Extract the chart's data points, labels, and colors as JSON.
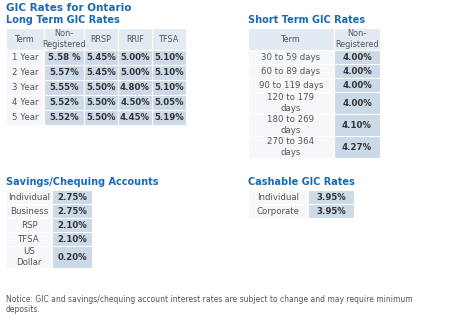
{
  "title": "GIC Rates for Ontario",
  "title_color": "#1a6ab0",
  "bg_color": "#ffffff",
  "section_title_color": "#1a6ab0",
  "cell_bg_highlight": "#ccd9e8",
  "cell_bg_normal": "#f5f7fa",
  "header_bg": "#e2eaf3",
  "text_color": "#555555",
  "bold_color": "#333333",
  "long_term_title": "Long Term GIC Rates",
  "long_term_headers": [
    "Term",
    "Non-\nRegistered",
    "RRSP",
    "RRIF",
    "TFSA"
  ],
  "long_term_rows": [
    [
      "1 Year",
      "5.58 %",
      "5.45%",
      "5.00%",
      "5.10%"
    ],
    [
      "2 Year",
      "5.57%",
      "5.45%",
      "5.00%",
      "5.10%"
    ],
    [
      "3 Year",
      "5.55%",
      "5.50%",
      "4.80%",
      "5.10%"
    ],
    [
      "4 Year",
      "5.52%",
      "5.50%",
      "4.50%",
      "5.05%"
    ],
    [
      "5 Year",
      "5.52%",
      "5.50%",
      "4.45%",
      "5.19%"
    ]
  ],
  "short_term_title": "Short Term GIC Rates",
  "short_term_headers": [
    "Term",
    "Non-\nRegistered"
  ],
  "short_term_rows": [
    [
      "30 to 59 days",
      "4.00%"
    ],
    [
      "60 to 89 days",
      "4.00%"
    ],
    [
      "90 to 119 days",
      "4.00%"
    ],
    [
      "120 to 179\ndays",
      "4.00%"
    ],
    [
      "180 to 269\ndays",
      "4.10%"
    ],
    [
      "270 to 364\ndays",
      "4.27%"
    ]
  ],
  "savings_title": "Savings/Chequing Accounts",
  "savings_rows": [
    [
      "Individual",
      "2.75%"
    ],
    [
      "Business",
      "2.75%"
    ],
    [
      "RSP",
      "2.10%"
    ],
    [
      "TFSA",
      "2.10%"
    ],
    [
      "US\nDollar",
      "0.20%"
    ]
  ],
  "cashable_title": "Cashable GIC Rates",
  "cashable_rows": [
    [
      "Individual",
      "3.95%"
    ],
    [
      "Corporate",
      "3.95%"
    ]
  ],
  "notice": "Notice: GIC and savings/chequing account interest rates are subject to change and may require minimum\ndeposits."
}
